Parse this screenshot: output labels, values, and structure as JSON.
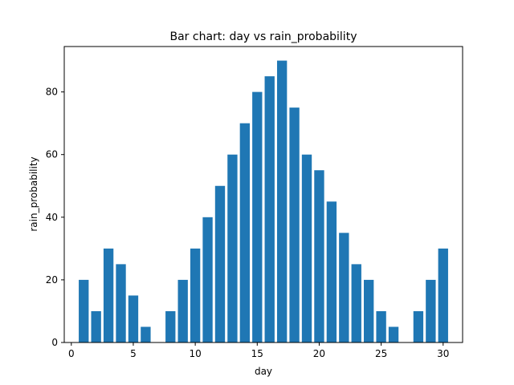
{
  "chart_data": {
    "type": "bar",
    "title": "Bar chart: day vs rain_probability",
    "xlabel": "day",
    "ylabel": "rain_probability",
    "x": [
      1,
      2,
      3,
      4,
      5,
      6,
      7,
      8,
      9,
      10,
      11,
      12,
      13,
      14,
      15,
      16,
      17,
      18,
      19,
      20,
      21,
      22,
      23,
      24,
      25,
      26,
      27,
      28,
      29,
      30
    ],
    "values": [
      20,
      10,
      30,
      25,
      15,
      5,
      0,
      10,
      20,
      30,
      40,
      50,
      60,
      70,
      80,
      85,
      90,
      75,
      60,
      55,
      45,
      35,
      25,
      20,
      10,
      5,
      0,
      10,
      20,
      30
    ],
    "xlim": [
      -0.57,
      31.57
    ],
    "ylim": [
      0,
      94.5
    ],
    "xticks": [
      0,
      5,
      10,
      15,
      20,
      25,
      30
    ],
    "yticks": [
      0,
      20,
      40,
      60,
      80
    ],
    "grid": false,
    "bar_color": "#1f77b4"
  }
}
